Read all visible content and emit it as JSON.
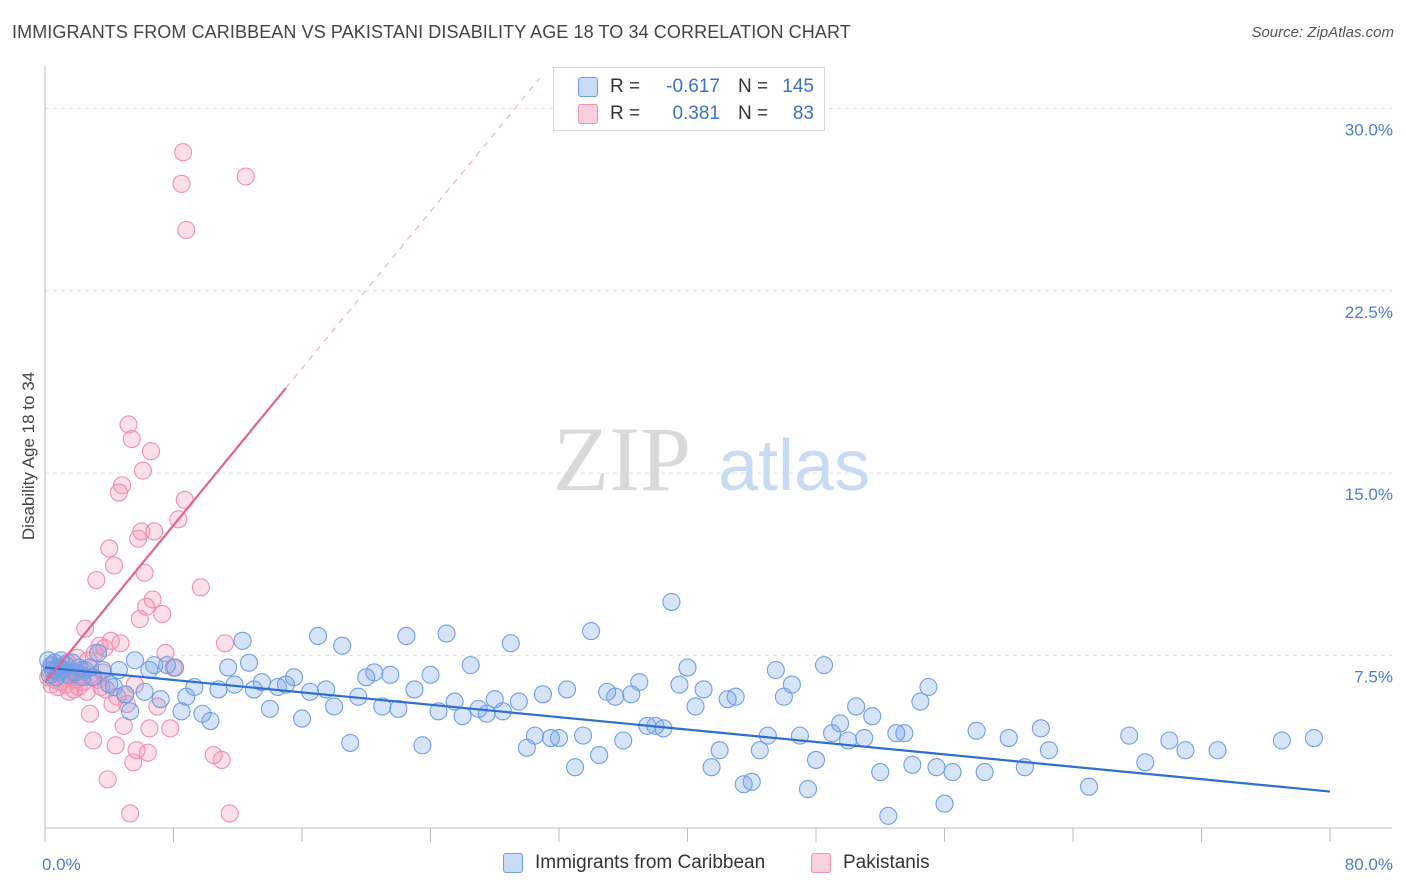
{
  "header": {
    "title": "IMMIGRANTS FROM CARIBBEAN VS PAKISTANI DISABILITY AGE 18 TO 34 CORRELATION CHART",
    "source": "Source: ZipAtlas.com"
  },
  "watermark": {
    "zip": "ZIP",
    "atlas": "atlas"
  },
  "legend_top": {
    "rows": [
      {
        "r_label": "R =",
        "r_value": "-0.617",
        "n_label": "N =",
        "n_value": "145",
        "color": "#6f9fe6"
      },
      {
        "r_label": "R =",
        "r_value": "0.381",
        "n_label": "N =",
        "n_value": "83",
        "color": "#f08fb0"
      }
    ]
  },
  "legend_bottom": {
    "items": [
      {
        "label": "Immigrants from Caribbean",
        "color": "#6f9fe6"
      },
      {
        "label": "Pakistanis",
        "color": "#f08fb0"
      }
    ]
  },
  "chart_data": {
    "type": "scatter",
    "ylabel": "Disability Age 18 to 34",
    "xlim": [
      0,
      80
    ],
    "ylim": [
      0.4,
      31.5
    ],
    "x_tick_labels": [
      "0.0%",
      "80.0%"
    ],
    "y_ticks": [
      {
        "value": 7.5,
        "label": "7.5%"
      },
      {
        "value": 15.0,
        "label": "15.0%"
      },
      {
        "value": 22.5,
        "label": "22.5%"
      },
      {
        "value": 30.0,
        "label": "30.0%"
      }
    ],
    "grid": true,
    "legend_position": "top-center",
    "colors": {
      "caribbean": "#6f9fe6",
      "caribbean_line": "#2e6fcf",
      "pakistani": "#f08fb0",
      "pakistani_line": "#e2648e"
    },
    "series": [
      {
        "name": "Immigrants from Caribbean",
        "trend": {
          "x0": 0,
          "y0": 7.0,
          "x1": 80,
          "y1": 1.9
        },
        "points": [
          [
            0.2,
            7.3
          ],
          [
            0.3,
            6.7
          ],
          [
            0.4,
            7.1
          ],
          [
            0.5,
            6.9
          ],
          [
            0.6,
            7.2
          ],
          [
            0.7,
            6.6
          ],
          [
            0.8,
            7.0
          ],
          [
            0.9,
            6.8
          ],
          [
            1.0,
            7.3
          ],
          [
            1.1,
            6.9
          ],
          [
            1.3,
            7.1
          ],
          [
            1.5,
            6.7
          ],
          [
            1.7,
            7.2
          ],
          [
            1.9,
            6.8
          ],
          [
            2.1,
            7.0
          ],
          [
            2.3,
            6.6
          ],
          [
            2.5,
            6.9
          ],
          [
            2.8,
            7.0
          ],
          [
            3.0,
            6.6
          ],
          [
            3.3,
            7.6
          ],
          [
            3.6,
            6.9
          ],
          [
            4.0,
            6.3
          ],
          [
            4.3,
            6.2
          ],
          [
            4.6,
            6.9
          ],
          [
            5.0,
            5.9
          ],
          [
            5.3,
            5.2
          ],
          [
            5.6,
            7.3
          ],
          [
            6.2,
            6.0
          ],
          [
            6.5,
            6.9
          ],
          [
            6.8,
            7.1
          ],
          [
            7.2,
            5.7
          ],
          [
            7.6,
            7.1
          ],
          [
            8.1,
            7.0
          ],
          [
            8.5,
            5.2
          ],
          [
            8.8,
            5.8
          ],
          [
            9.3,
            6.2
          ],
          [
            9.8,
            5.1
          ],
          [
            10.3,
            4.8
          ],
          [
            10.8,
            6.1
          ],
          [
            11.4,
            7.0
          ],
          [
            11.8,
            6.3
          ],
          [
            12.3,
            8.1
          ],
          [
            12.7,
            7.2
          ],
          [
            13.0,
            6.1
          ],
          [
            13.5,
            6.4
          ],
          [
            14.0,
            5.3
          ],
          [
            14.5,
            6.2
          ],
          [
            15.0,
            6.3
          ],
          [
            15.5,
            6.6
          ],
          [
            16.0,
            4.9
          ],
          [
            16.5,
            6.0
          ],
          [
            17.0,
            8.3
          ],
          [
            17.5,
            6.1
          ],
          [
            18.0,
            5.4
          ],
          [
            18.5,
            7.9
          ],
          [
            19.0,
            3.9
          ],
          [
            19.5,
            5.8
          ],
          [
            20.0,
            6.6
          ],
          [
            20.5,
            6.8
          ],
          [
            21.0,
            5.4
          ],
          [
            21.5,
            6.7
          ],
          [
            22.0,
            5.3
          ],
          [
            22.5,
            8.3
          ],
          [
            23.0,
            6.1
          ],
          [
            23.5,
            3.8
          ],
          [
            24.0,
            6.7
          ],
          [
            24.5,
            5.2
          ],
          [
            25.0,
            8.4
          ],
          [
            25.5,
            5.6
          ],
          [
            26.0,
            5.0
          ],
          [
            26.5,
            7.1
          ],
          [
            27.0,
            5.3
          ],
          [
            27.5,
            5.1
          ],
          [
            28.0,
            5.7
          ],
          [
            28.5,
            5.2
          ],
          [
            29.0,
            8.0
          ],
          [
            29.5,
            5.6
          ],
          [
            30.0,
            3.7
          ],
          [
            30.5,
            4.2
          ],
          [
            31.0,
            5.9
          ],
          [
            31.5,
            4.1
          ],
          [
            32.0,
            4.1
          ],
          [
            32.5,
            6.1
          ],
          [
            33.0,
            2.9
          ],
          [
            33.5,
            4.2
          ],
          [
            34.0,
            8.5
          ],
          [
            34.5,
            3.4
          ],
          [
            35.0,
            6.0
          ],
          [
            35.5,
            5.8
          ],
          [
            36.0,
            4.0
          ],
          [
            36.5,
            5.9
          ],
          [
            37.0,
            6.4
          ],
          [
            37.5,
            4.6
          ],
          [
            38.0,
            4.6
          ],
          [
            38.5,
            4.5
          ],
          [
            39.0,
            9.7
          ],
          [
            39.5,
            6.3
          ],
          [
            40.0,
            7.0
          ],
          [
            40.5,
            5.4
          ],
          [
            41.0,
            6.1
          ],
          [
            41.5,
            2.9
          ],
          [
            42.0,
            3.6
          ],
          [
            42.5,
            5.7
          ],
          [
            43.0,
            5.8
          ],
          [
            43.5,
            2.2
          ],
          [
            44.0,
            2.3
          ],
          [
            44.5,
            3.6
          ],
          [
            45.0,
            4.2
          ],
          [
            45.5,
            6.9
          ],
          [
            46.0,
            5.8
          ],
          [
            46.5,
            6.3
          ],
          [
            47.0,
            4.2
          ],
          [
            47.5,
            2.0
          ],
          [
            48.0,
            3.2
          ],
          [
            48.5,
            7.1
          ],
          [
            49.0,
            4.3
          ],
          [
            49.5,
            4.7
          ],
          [
            50.0,
            4.0
          ],
          [
            50.5,
            5.4
          ],
          [
            51.0,
            4.1
          ],
          [
            51.5,
            5.0
          ],
          [
            52.0,
            2.7
          ],
          [
            52.5,
            0.9
          ],
          [
            53.0,
            4.3
          ],
          [
            53.5,
            4.3
          ],
          [
            54.0,
            3.0
          ],
          [
            54.5,
            5.6
          ],
          [
            55.0,
            6.2
          ],
          [
            55.5,
            2.9
          ],
          [
            56.0,
            1.4
          ],
          [
            56.5,
            2.7
          ],
          [
            58.0,
            4.4
          ],
          [
            58.5,
            2.7
          ],
          [
            60.0,
            4.1
          ],
          [
            61.0,
            2.9
          ],
          [
            62.0,
            4.5
          ],
          [
            62.5,
            3.6
          ],
          [
            65.0,
            2.1
          ],
          [
            67.5,
            4.2
          ],
          [
            68.5,
            3.1
          ],
          [
            70.0,
            4.0
          ],
          [
            71.0,
            3.6
          ],
          [
            73.0,
            3.6
          ],
          [
            77.0,
            4.0
          ],
          [
            79.0,
            4.1
          ]
        ]
      },
      {
        "name": "Pakistanis",
        "trend": {
          "x0": 0,
          "y0": 6.4,
          "x1": 15,
          "y1": 18.5
        },
        "points": [
          [
            0.2,
            6.6
          ],
          [
            0.3,
            6.9
          ],
          [
            0.4,
            6.3
          ],
          [
            0.5,
            7.1
          ],
          [
            0.6,
            6.5
          ],
          [
            0.7,
            6.8
          ],
          [
            0.8,
            6.2
          ],
          [
            0.9,
            7.0
          ],
          [
            1.0,
            6.4
          ],
          [
            1.1,
            6.7
          ],
          [
            1.2,
            6.9
          ],
          [
            1.3,
            6.3
          ],
          [
            1.4,
            7.2
          ],
          [
            1.5,
            6.0
          ],
          [
            1.6,
            6.6
          ],
          [
            1.7,
            6.8
          ],
          [
            1.8,
            6.1
          ],
          [
            1.9,
            6.5
          ],
          [
            2.0,
            7.4
          ],
          [
            2.1,
            6.2
          ],
          [
            2.2,
            6.7
          ],
          [
            2.3,
            6.9
          ],
          [
            2.4,
            6.4
          ],
          [
            2.5,
            8.6
          ],
          [
            2.6,
            6.0
          ],
          [
            2.7,
            7.3
          ],
          [
            2.8,
            5.1
          ],
          [
            2.9,
            6.6
          ],
          [
            3.0,
            4.0
          ],
          [
            3.1,
            7.6
          ],
          [
            3.2,
            10.6
          ],
          [
            3.3,
            6.5
          ],
          [
            3.4,
            7.9
          ],
          [
            3.5,
            6.2
          ],
          [
            3.6,
            6.8
          ],
          [
            3.7,
            7.8
          ],
          [
            3.8,
            6.1
          ],
          [
            3.9,
            2.4
          ],
          [
            4.0,
            11.9
          ],
          [
            4.1,
            8.1
          ],
          [
            4.2,
            5.5
          ],
          [
            4.3,
            11.2
          ],
          [
            4.4,
            3.8
          ],
          [
            4.5,
            5.8
          ],
          [
            4.6,
            14.2
          ],
          [
            4.7,
            8.0
          ],
          [
            4.8,
            14.5
          ],
          [
            4.9,
            4.6
          ],
          [
            5.0,
            5.9
          ],
          [
            5.1,
            5.5
          ],
          [
            5.2,
            17.0
          ],
          [
            5.3,
            1.0
          ],
          [
            5.4,
            16.4
          ],
          [
            5.5,
            3.1
          ],
          [
            5.6,
            6.3
          ],
          [
            5.7,
            3.6
          ],
          [
            5.8,
            12.3
          ],
          [
            5.9,
            9.0
          ],
          [
            6.0,
            12.6
          ],
          [
            6.1,
            15.1
          ],
          [
            6.2,
            10.9
          ],
          [
            6.3,
            9.5
          ],
          [
            6.4,
            3.5
          ],
          [
            6.5,
            4.5
          ],
          [
            6.6,
            15.9
          ],
          [
            6.7,
            9.8
          ],
          [
            6.8,
            12.6
          ],
          [
            7.0,
            5.4
          ],
          [
            7.3,
            9.2
          ],
          [
            7.5,
            7.6
          ],
          [
            7.8,
            4.5
          ],
          [
            8.0,
            7.0
          ],
          [
            8.3,
            13.1
          ],
          [
            8.5,
            26.9
          ],
          [
            8.6,
            28.2
          ],
          [
            8.7,
            13.9
          ],
          [
            8.8,
            25.0
          ],
          [
            9.7,
            10.3
          ],
          [
            10.5,
            3.4
          ],
          [
            11.0,
            3.2
          ],
          [
            11.2,
            8.0
          ],
          [
            11.5,
            1.0
          ],
          [
            12.5,
            27.2
          ]
        ]
      }
    ]
  }
}
